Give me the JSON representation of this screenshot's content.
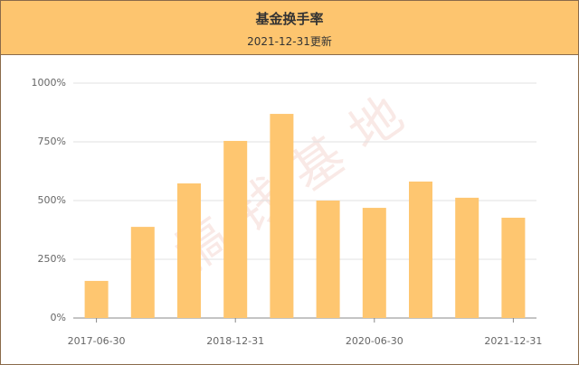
{
  "chart_data": {
    "type": "bar",
    "title": "基金换手率",
    "subtitle": "2021-12-31更新",
    "watermark": "搞钱基地",
    "categories": [
      "2017-06-30",
      null,
      null,
      "2018-12-31",
      null,
      null,
      "2020-06-30",
      null,
      null,
      "2021-12-31"
    ],
    "values": [
      158,
      388,
      573,
      754,
      869,
      500,
      469,
      581,
      512,
      427
    ],
    "color": "#fec670",
    "ylim": [
      0,
      1000
    ],
    "yticks": [
      {
        "value": 0,
        "label": "0%"
      },
      {
        "value": 250,
        "label": "250%"
      },
      {
        "value": 500,
        "label": "500%"
      },
      {
        "value": 750,
        "label": "750%"
      },
      {
        "value": 1000,
        "label": "1000%"
      }
    ],
    "grid": true
  }
}
